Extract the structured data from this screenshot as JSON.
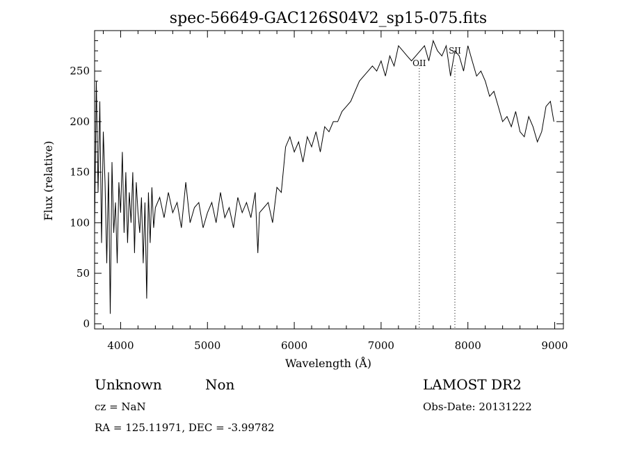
{
  "chart_data": {
    "type": "line",
    "title": "spec-56649-GAC126S04V2_sp15-075.fits",
    "xlabel": "Wavelength (Å)",
    "ylabel": "Flux (relative)",
    "xlim": [
      3700,
      9100
    ],
    "ylim": [
      -5,
      290
    ],
    "xticks": [
      4000,
      5000,
      6000,
      7000,
      8000,
      9000
    ],
    "yticks": [
      0,
      50,
      100,
      150,
      200,
      250
    ],
    "grid": false,
    "line_color": "#000000",
    "series": [
      {
        "x": [
          3700,
          3720,
          3740,
          3760,
          3780,
          3800,
          3820,
          3840,
          3860,
          3880,
          3900,
          3920,
          3940,
          3960,
          3980,
          4000,
          4020,
          4040,
          4060,
          4080,
          4100,
          4120,
          4140,
          4160,
          4180,
          4200,
          4220,
          4240,
          4260,
          4280,
          4300,
          4320,
          4340,
          4360,
          4380,
          4400,
          4450,
          4500,
          4550,
          4600,
          4650,
          4700,
          4750,
          4800,
          4850,
          4900,
          4950,
          5000,
          5050,
          5100,
          5150,
          5200,
          5250,
          5300,
          5350,
          5400,
          5450,
          5500,
          5550,
          5580,
          5600,
          5650,
          5700,
          5750,
          5800,
          5850,
          5900,
          5950,
          6000,
          6050,
          6100,
          6150,
          6200,
          6250,
          6300,
          6350,
          6400,
          6450,
          6500,
          6550,
          6600,
          6650,
          6700,
          6750,
          6800,
          6850,
          6900,
          6950,
          7000,
          7050,
          7100,
          7150,
          7200,
          7250,
          7300,
          7350,
          7400,
          7450,
          7500,
          7550,
          7600,
          7650,
          7700,
          7750,
          7800,
          7850,
          7900,
          7950,
          8000,
          8050,
          8100,
          8150,
          8200,
          8250,
          8300,
          8350,
          8400,
          8450,
          8500,
          8550,
          8600,
          8650,
          8700,
          8750,
          8800,
          8850,
          8900,
          8950,
          8990
        ],
        "y": [
          95,
          240,
          130,
          220,
          80,
          190,
          140,
          60,
          150,
          10,
          160,
          90,
          120,
          60,
          140,
          110,
          170,
          90,
          150,
          80,
          130,
          100,
          150,
          70,
          140,
          110,
          90,
          125,
          60,
          120,
          25,
          130,
          80,
          135,
          95,
          115,
          125,
          105,
          130,
          110,
          120,
          95,
          140,
          100,
          115,
          120,
          95,
          110,
          120,
          100,
          130,
          105,
          115,
          95,
          125,
          110,
          120,
          105,
          130,
          70,
          110,
          115,
          120,
          100,
          135,
          130,
          175,
          185,
          170,
          180,
          160,
          185,
          175,
          190,
          170,
          195,
          190,
          200,
          200,
          210,
          215,
          220,
          230,
          240,
          245,
          250,
          255,
          250,
          260,
          245,
          265,
          255,
          275,
          270,
          265,
          260,
          265,
          270,
          275,
          260,
          280,
          270,
          265,
          275,
          245,
          270,
          265,
          250,
          275,
          260,
          245,
          250,
          240,
          225,
          230,
          215,
          200,
          205,
          195,
          210,
          190,
          185,
          205,
          195,
          180,
          190,
          215,
          220,
          200
        ]
      }
    ],
    "annotations": [
      {
        "label": "OII",
        "x": 7440
      },
      {
        "label": "SII",
        "x": 7850
      }
    ]
  },
  "info": {
    "class": "Unknown",
    "subclass": "Non",
    "cz": "cz = NaN",
    "radec": "RA = 125.11971, DEC =  -3.99782",
    "survey": "LAMOST DR2",
    "obsdate": "Obs-Date: 20131222"
  }
}
